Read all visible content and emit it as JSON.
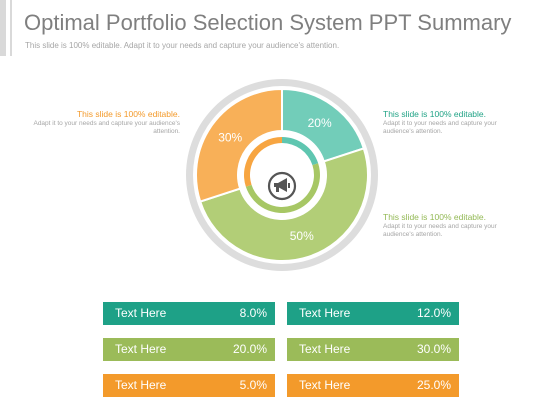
{
  "header": {
    "title": "Optimal Portfolio Selection System PPT Summary",
    "subtitle": "This slide is 100% editable. Adapt it to your needs and capture your audience's attention."
  },
  "colors": {
    "teal": "#5fc6b0",
    "green": "#a7c765",
    "orange": "#f7a541",
    "ring": "#dddddd"
  },
  "center_icon": "megaphone-icon",
  "chart_data": {
    "type": "pie",
    "style": "donut",
    "slices": [
      {
        "label": "20%",
        "value": 20,
        "color": "#5fc6b0"
      },
      {
        "label": "50%",
        "value": 50,
        "color": "#a7c765"
      },
      {
        "label": "30%",
        "value": 30,
        "color": "#f7a541"
      }
    ]
  },
  "callouts": [
    {
      "heading": "This slide is 100% editable.",
      "body": "Adapt it to your needs and capture your audience's attention."
    },
    {
      "heading": "This slide is 100% editable.",
      "body": "Adapt it to your needs and capture your audience's attention."
    },
    {
      "heading": "This slide is 100% editable.",
      "body": "Adapt it to your needs and capture your audience's attention."
    }
  ],
  "boxes": [
    {
      "label": "Text Here",
      "value": "8.0%"
    },
    {
      "label": "Text Here",
      "value": "12.0%"
    },
    {
      "label": "Text Here",
      "value": "20.0%"
    },
    {
      "label": "Text Here",
      "value": "30.0%"
    },
    {
      "label": "Text Here",
      "value": "5.0%"
    },
    {
      "label": "Text Here",
      "value": "25.0%"
    }
  ]
}
